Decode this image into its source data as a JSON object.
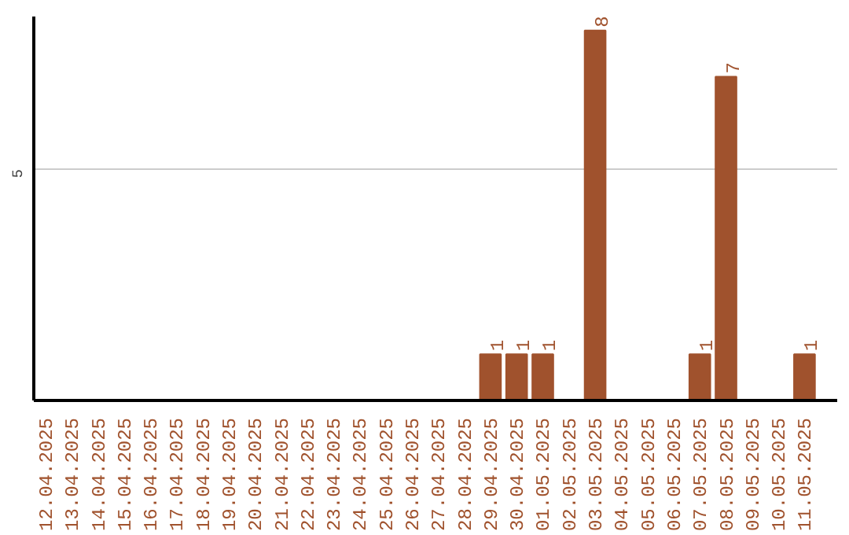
{
  "chart_data": {
    "type": "bar",
    "categories": [
      "12.04.2025",
      "13.04.2025",
      "14.04.2025",
      "15.04.2025",
      "16.04.2025",
      "17.04.2025",
      "18.04.2025",
      "19.04.2025",
      "20.04.2025",
      "21.04.2025",
      "22.04.2025",
      "23.04.2025",
      "24.04.2025",
      "25.04.2025",
      "26.04.2025",
      "27.04.2025",
      "28.04.2025",
      "29.04.2025",
      "30.04.2025",
      "01.05.2025",
      "02.05.2025",
      "03.05.2025",
      "04.05.2025",
      "05.05.2025",
      "06.05.2025",
      "07.05.2025",
      "08.05.2025",
      "09.05.2025",
      "10.05.2025",
      "11.05.2025"
    ],
    "values": [
      null,
      null,
      null,
      null,
      null,
      null,
      null,
      null,
      null,
      null,
      null,
      null,
      null,
      null,
      null,
      null,
      null,
      1,
      1,
      1,
      null,
      8,
      null,
      null,
      null,
      1,
      7,
      null,
      null,
      1
    ],
    "data_labels": true,
    "ylim": [
      0,
      8.3
    ],
    "color": "#a0522d",
    "ref_lines": [
      {
        "axis": "y",
        "value": 5,
        "label": "5",
        "color": "#cccccc"
      }
    ]
  }
}
